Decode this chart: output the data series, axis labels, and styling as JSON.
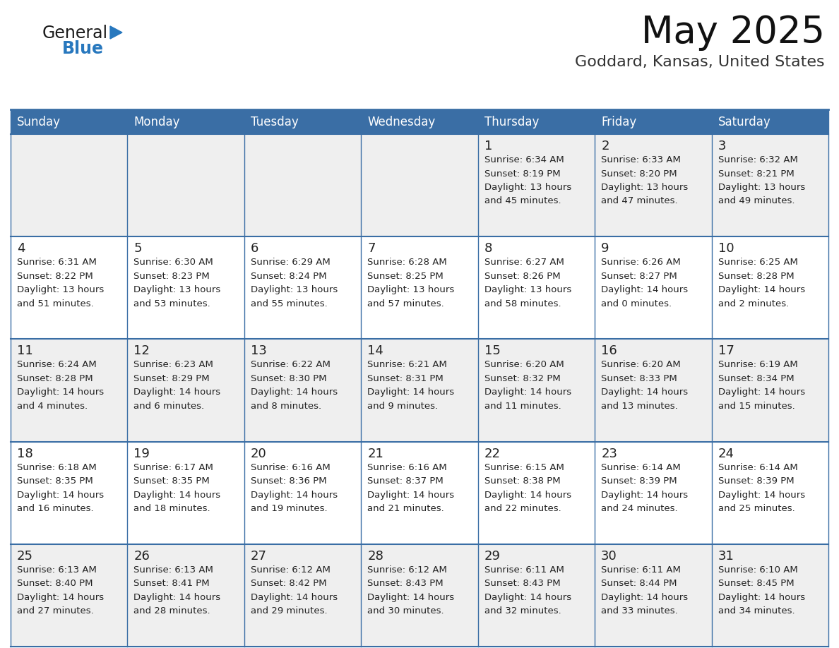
{
  "title": "May 2025",
  "subtitle": "Goddard, Kansas, United States",
  "header_color": "#3a6ea5",
  "header_text_color": "#ffffff",
  "cell_bg_color": "#f5f5f5",
  "cell_border_color": "#3a6ea5",
  "text_color": "#222222",
  "day_names": [
    "Sunday",
    "Monday",
    "Tuesday",
    "Wednesday",
    "Thursday",
    "Friday",
    "Saturday"
  ],
  "calendar": [
    [
      {
        "day": "",
        "sunrise": "",
        "sunset": "",
        "daylight": ""
      },
      {
        "day": "",
        "sunrise": "",
        "sunset": "",
        "daylight": ""
      },
      {
        "day": "",
        "sunrise": "",
        "sunset": "",
        "daylight": ""
      },
      {
        "day": "",
        "sunrise": "",
        "sunset": "",
        "daylight": ""
      },
      {
        "day": "1",
        "sunrise": "6:34 AM",
        "sunset": "8:19 PM",
        "daylight": "13 hours\nand 45 minutes."
      },
      {
        "day": "2",
        "sunrise": "6:33 AM",
        "sunset": "8:20 PM",
        "daylight": "13 hours\nand 47 minutes."
      },
      {
        "day": "3",
        "sunrise": "6:32 AM",
        "sunset": "8:21 PM",
        "daylight": "13 hours\nand 49 minutes."
      }
    ],
    [
      {
        "day": "4",
        "sunrise": "6:31 AM",
        "sunset": "8:22 PM",
        "daylight": "13 hours\nand 51 minutes."
      },
      {
        "day": "5",
        "sunrise": "6:30 AM",
        "sunset": "8:23 PM",
        "daylight": "13 hours\nand 53 minutes."
      },
      {
        "day": "6",
        "sunrise": "6:29 AM",
        "sunset": "8:24 PM",
        "daylight": "13 hours\nand 55 minutes."
      },
      {
        "day": "7",
        "sunrise": "6:28 AM",
        "sunset": "8:25 PM",
        "daylight": "13 hours\nand 57 minutes."
      },
      {
        "day": "8",
        "sunrise": "6:27 AM",
        "sunset": "8:26 PM",
        "daylight": "13 hours\nand 58 minutes."
      },
      {
        "day": "9",
        "sunrise": "6:26 AM",
        "sunset": "8:27 PM",
        "daylight": "14 hours\nand 0 minutes."
      },
      {
        "day": "10",
        "sunrise": "6:25 AM",
        "sunset": "8:28 PM",
        "daylight": "14 hours\nand 2 minutes."
      }
    ],
    [
      {
        "day": "11",
        "sunrise": "6:24 AM",
        "sunset": "8:28 PM",
        "daylight": "14 hours\nand 4 minutes."
      },
      {
        "day": "12",
        "sunrise": "6:23 AM",
        "sunset": "8:29 PM",
        "daylight": "14 hours\nand 6 minutes."
      },
      {
        "day": "13",
        "sunrise": "6:22 AM",
        "sunset": "8:30 PM",
        "daylight": "14 hours\nand 8 minutes."
      },
      {
        "day": "14",
        "sunrise": "6:21 AM",
        "sunset": "8:31 PM",
        "daylight": "14 hours\nand 9 minutes."
      },
      {
        "day": "15",
        "sunrise": "6:20 AM",
        "sunset": "8:32 PM",
        "daylight": "14 hours\nand 11 minutes."
      },
      {
        "day": "16",
        "sunrise": "6:20 AM",
        "sunset": "8:33 PM",
        "daylight": "14 hours\nand 13 minutes."
      },
      {
        "day": "17",
        "sunrise": "6:19 AM",
        "sunset": "8:34 PM",
        "daylight": "14 hours\nand 15 minutes."
      }
    ],
    [
      {
        "day": "18",
        "sunrise": "6:18 AM",
        "sunset": "8:35 PM",
        "daylight": "14 hours\nand 16 minutes."
      },
      {
        "day": "19",
        "sunrise": "6:17 AM",
        "sunset": "8:35 PM",
        "daylight": "14 hours\nand 18 minutes."
      },
      {
        "day": "20",
        "sunrise": "6:16 AM",
        "sunset": "8:36 PM",
        "daylight": "14 hours\nand 19 minutes."
      },
      {
        "day": "21",
        "sunrise": "6:16 AM",
        "sunset": "8:37 PM",
        "daylight": "14 hours\nand 21 minutes."
      },
      {
        "day": "22",
        "sunrise": "6:15 AM",
        "sunset": "8:38 PM",
        "daylight": "14 hours\nand 22 minutes."
      },
      {
        "day": "23",
        "sunrise": "6:14 AM",
        "sunset": "8:39 PM",
        "daylight": "14 hours\nand 24 minutes."
      },
      {
        "day": "24",
        "sunrise": "6:14 AM",
        "sunset": "8:39 PM",
        "daylight": "14 hours\nand 25 minutes."
      }
    ],
    [
      {
        "day": "25",
        "sunrise": "6:13 AM",
        "sunset": "8:40 PM",
        "daylight": "14 hours\nand 27 minutes."
      },
      {
        "day": "26",
        "sunrise": "6:13 AM",
        "sunset": "8:41 PM",
        "daylight": "14 hours\nand 28 minutes."
      },
      {
        "day": "27",
        "sunrise": "6:12 AM",
        "sunset": "8:42 PM",
        "daylight": "14 hours\nand 29 minutes."
      },
      {
        "day": "28",
        "sunrise": "6:12 AM",
        "sunset": "8:43 PM",
        "daylight": "14 hours\nand 30 minutes."
      },
      {
        "day": "29",
        "sunrise": "6:11 AM",
        "sunset": "8:43 PM",
        "daylight": "14 hours\nand 32 minutes."
      },
      {
        "day": "30",
        "sunrise": "6:11 AM",
        "sunset": "8:44 PM",
        "daylight": "14 hours\nand 33 minutes."
      },
      {
        "day": "31",
        "sunrise": "6:10 AM",
        "sunset": "8:45 PM",
        "daylight": "14 hours\nand 34 minutes."
      }
    ]
  ],
  "logo_color_general": "#1a1a1a",
  "logo_color_blue": "#2878be",
  "logo_triangle_color": "#2878be",
  "title_fontsize": 38,
  "subtitle_fontsize": 16,
  "header_fontsize": 12,
  "day_num_fontsize": 13,
  "cell_text_fontsize": 9.5
}
